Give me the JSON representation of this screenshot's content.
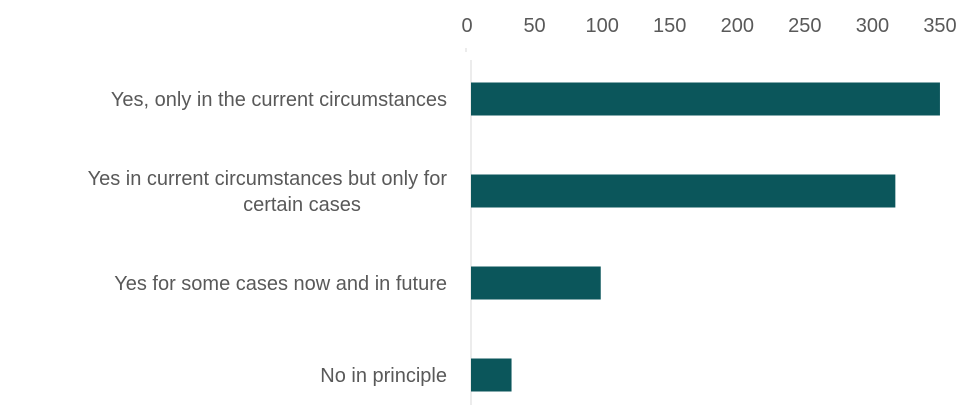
{
  "chart_data": {
    "type": "bar",
    "orientation": "horizontal",
    "title": "",
    "xlabel": "",
    "ylabel": "",
    "categories": [
      [
        "Yes, only in the current circumstances"
      ],
      [
        "Yes in current circumstances but only for",
        "certain cases"
      ],
      [
        "Yes for some cases now and in future"
      ],
      [
        "No in principle"
      ]
    ],
    "values": [
      347,
      314,
      96,
      30
    ],
    "xlim": [
      0,
      350
    ],
    "xticks": [
      "0",
      "50",
      "100",
      "150",
      "200",
      "250",
      "300",
      "350"
    ],
    "axis_position": "top",
    "grid": false,
    "legend": "none",
    "colors": {
      "bar": "#0b565b",
      "axis": "#d9d9d9",
      "text": "#595959"
    }
  }
}
